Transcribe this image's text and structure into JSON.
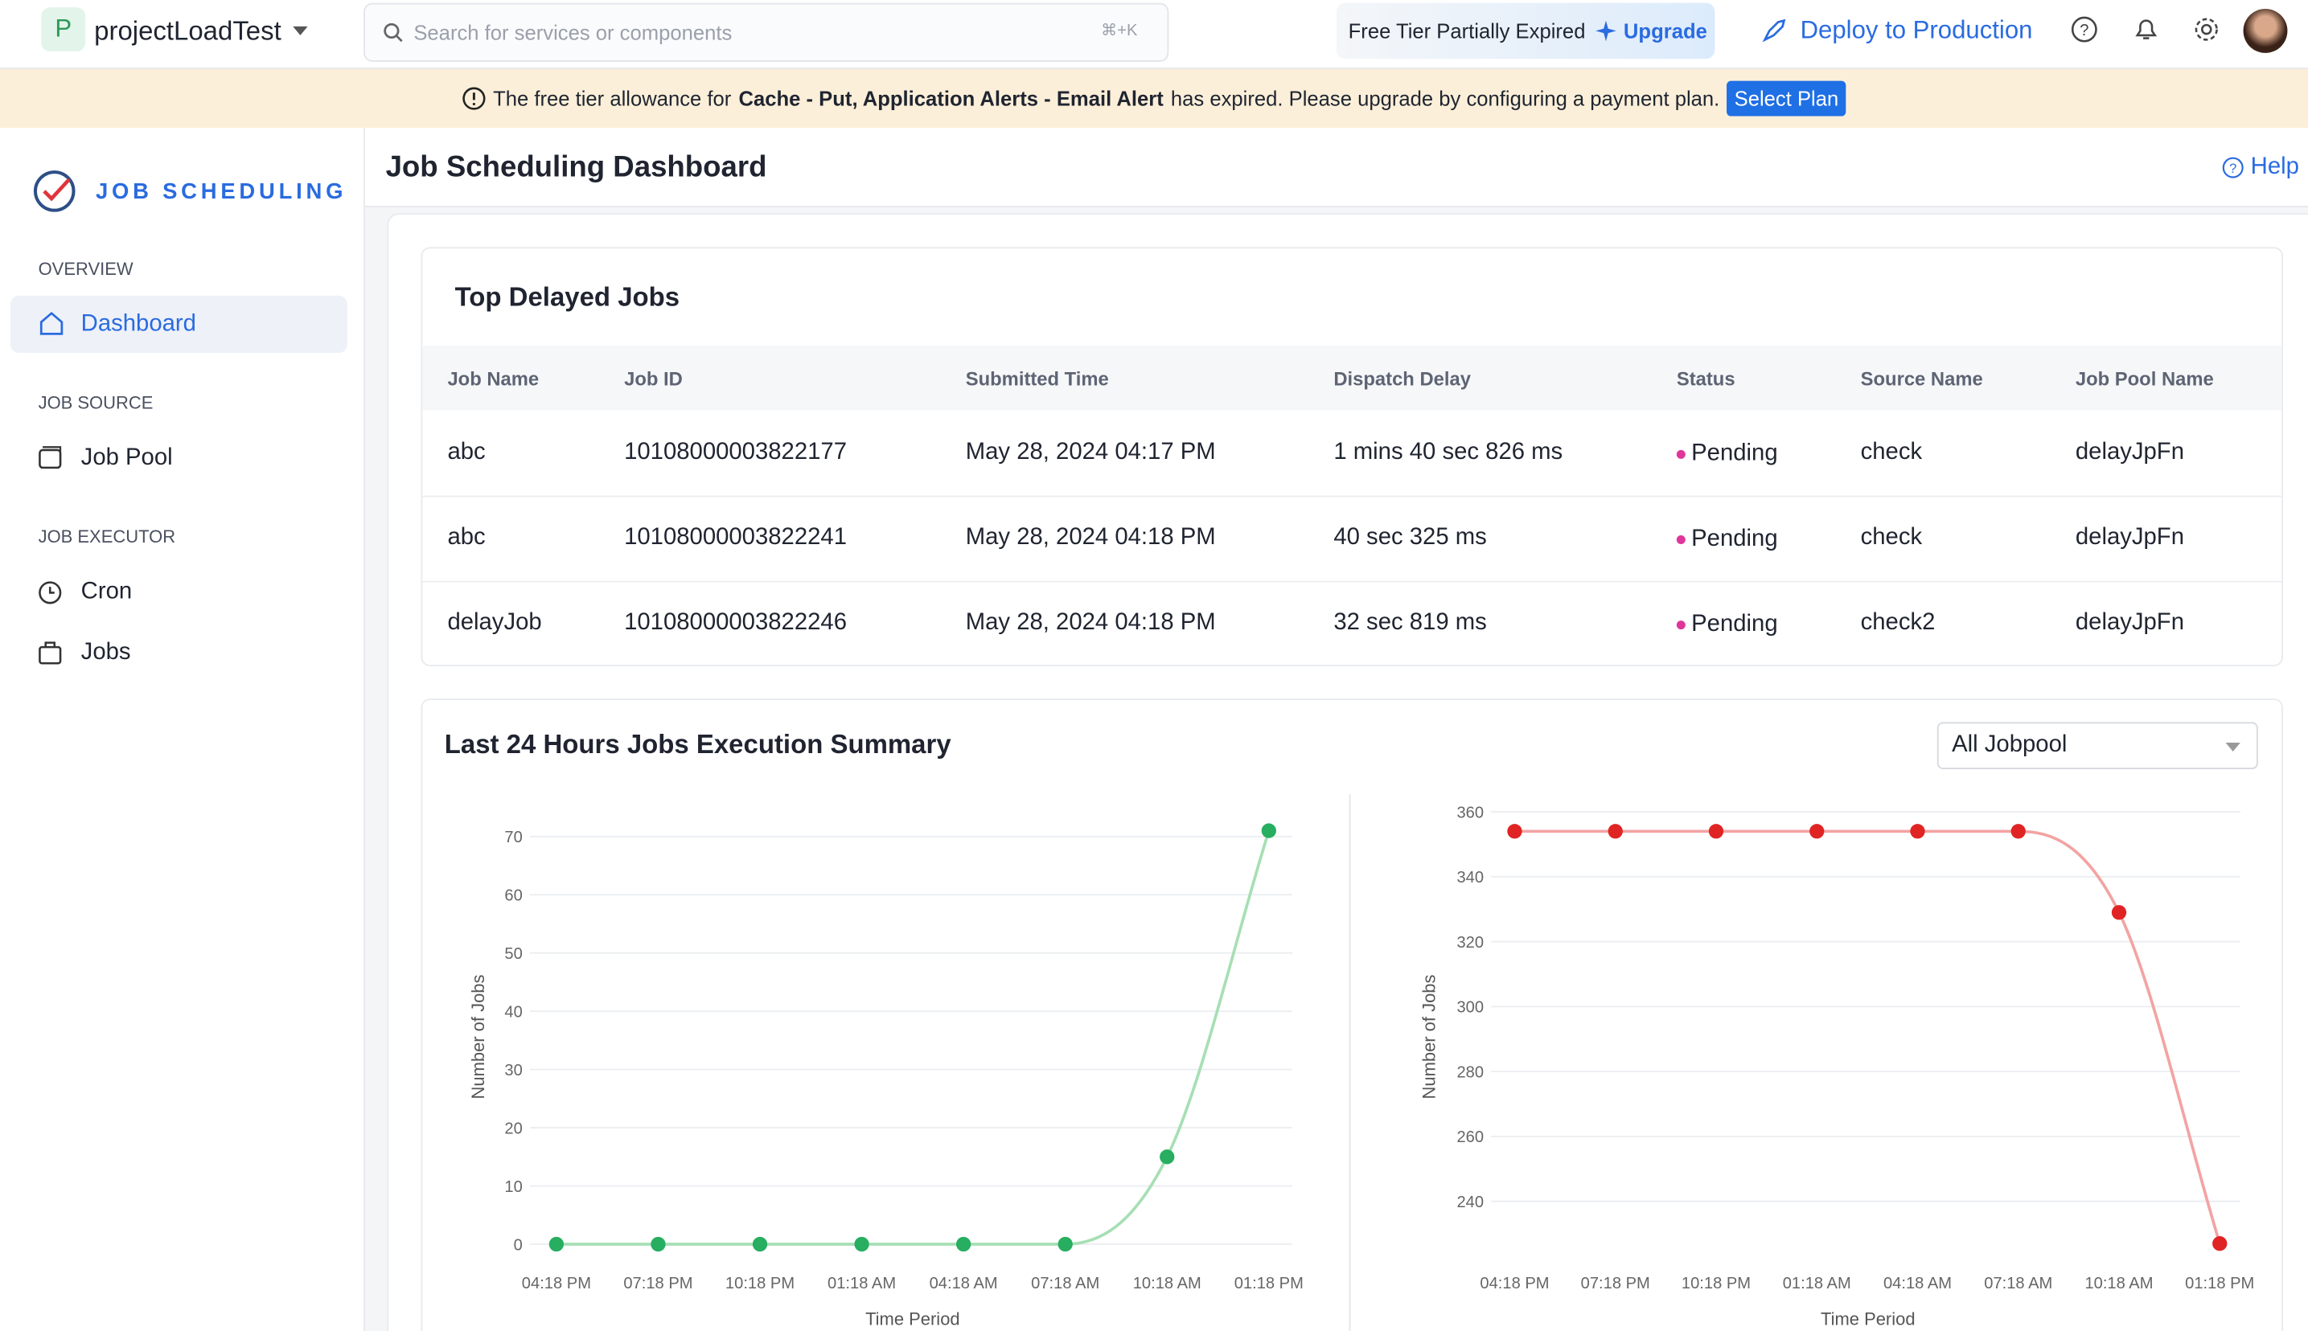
{
  "topbar": {
    "project_initial": "P",
    "project": "projectLoadTest",
    "search_placeholder": "Search for services or components",
    "shortcut": "⌘+K",
    "tier_notice": "Free Tier Partially Expired",
    "upgrade": "Upgrade",
    "deploy": "Deploy to Production"
  },
  "banner": {
    "text_before": "The free tier allowance for",
    "bold": "Cache - Put, Application Alerts - Email Alert",
    "text_after": "has expired. Please upgrade by configuring a payment plan.",
    "button": "Select Plan"
  },
  "sidebar": {
    "brand": "JOB SCHEDULING",
    "sections": [
      {
        "heading": "OVERVIEW",
        "items": [
          "Dashboard"
        ]
      },
      {
        "heading": "JOB SOURCE",
        "items": [
          "Job Pool"
        ]
      },
      {
        "heading": "JOB EXECUTOR",
        "items": [
          "Cron",
          "Jobs"
        ]
      }
    ]
  },
  "page": {
    "title": "Job Scheduling Dashboard",
    "help": "Help"
  },
  "table": {
    "title": "Top Delayed Jobs",
    "columns": [
      "Job Name",
      "Job ID",
      "Submitted Time",
      "Dispatch Delay",
      "Status",
      "Source Name",
      "Job Pool Name"
    ],
    "rows": [
      [
        "abc",
        "10108000003822177",
        "May 28, 2024 04:17 PM",
        "1 mins 40 sec 826 ms",
        "Pending",
        "check",
        "delayJpFn"
      ],
      [
        "abc",
        "10108000003822241",
        "May 28, 2024 04:18 PM",
        "40 sec 325 ms",
        "Pending",
        "check",
        "delayJpFn"
      ],
      [
        "delayJob",
        "10108000003822246",
        "May 28, 2024 04:18 PM",
        "32 sec 819 ms",
        "Pending",
        "check2",
        "delayJpFn"
      ]
    ]
  },
  "summary": {
    "title": "Last 24 Hours Jobs Execution Summary",
    "filter": "All Jobpool"
  },
  "charts": [
    {
      "type": "line",
      "categories": [
        "04:18 PM",
        "07:18 PM",
        "10:18 PM",
        "01:18 AM",
        "04:18 AM",
        "07:18 AM",
        "10:18 AM",
        "01:18 PM"
      ],
      "values": [
        0,
        0,
        0,
        0,
        0,
        0,
        15,
        71
      ],
      "color": "#27ae60",
      "line_color": "#a6dfb4",
      "ylim": [
        0,
        75
      ],
      "yticks": [
        0,
        10,
        20,
        30,
        40,
        50,
        60,
        70
      ],
      "grid": true,
      "ylabel": "Number of Jobs",
      "xlabel": "Time Period"
    },
    {
      "type": "line",
      "categories": [
        "04:18 PM",
        "07:18 PM",
        "10:18 PM",
        "01:18 AM",
        "04:18 AM",
        "07:18 AM",
        "10:18 AM",
        "01:18 PM"
      ],
      "values": [
        354,
        354,
        354,
        354,
        354,
        354,
        329,
        227
      ],
      "color": "#e02424",
      "line_color": "#f3a3a3",
      "ylim": [
        220,
        360
      ],
      "yticks": [
        240,
        260,
        280,
        300,
        320,
        340,
        360
      ],
      "grid": true,
      "ylabel": "Number of Jobs",
      "xlabel": "Time Period"
    }
  ]
}
